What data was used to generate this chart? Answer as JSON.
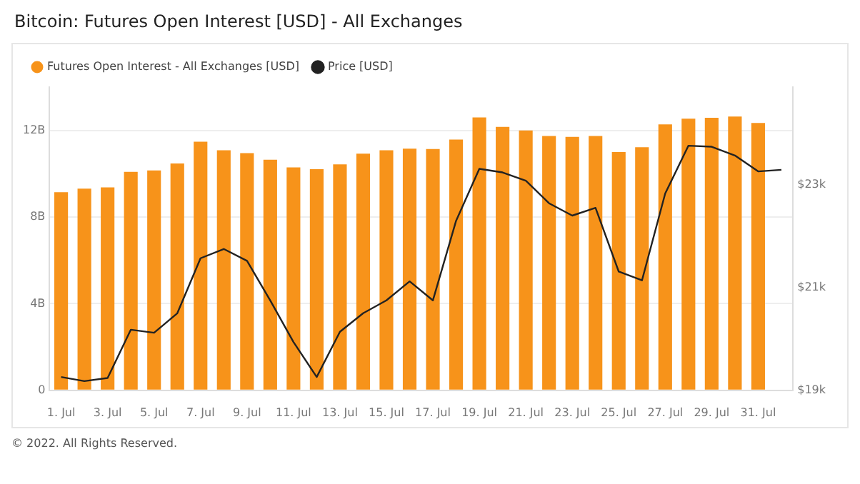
{
  "chart_data": {
    "type": "bar",
    "title": "Bitcoin: Futures Open Interest [USD] - All Exchanges",
    "categories": [
      "1. Jul",
      null,
      "3. Jul",
      null,
      "5. Jul",
      null,
      "7. Jul",
      null,
      "9. Jul",
      null,
      "11. Jul",
      null,
      "13. Jul",
      null,
      "15. Jul",
      null,
      "17. Jul",
      null,
      "19. Jul",
      null,
      "21. Jul",
      null,
      "23. Jul",
      null,
      "25. Jul",
      null,
      "27. Jul",
      null,
      "29. Jul",
      null,
      "31. Jul",
      null
    ],
    "series": [
      {
        "name": "Futures Open Interest - All Exchanges [USD]",
        "color": "#f7931a",
        "values": [
          9.15,
          9.31,
          9.37,
          10.09,
          10.15,
          10.47,
          11.48,
          11.08,
          10.95,
          10.65,
          10.29,
          10.21,
          10.43,
          10.93,
          11.08,
          11.16,
          11.14,
          11.58,
          12.6,
          12.16,
          12.0,
          11.74,
          11.7,
          11.74,
          11.0,
          11.22,
          12.28,
          12.54,
          12.58,
          12.64,
          12.34,
          null
        ]
      },
      {
        "name": "Price [USD]",
        "type": "line",
        "axis": "y2",
        "color": "#222222",
        "values": [
          19260,
          19180,
          19240,
          20180,
          20120,
          20500,
          21570,
          21750,
          21520,
          20750,
          19940,
          19260,
          20140,
          20500,
          20750,
          21120,
          20750,
          22300,
          23310,
          23240,
          23080,
          22640,
          22400,
          22550,
          21310,
          21140,
          22830,
          23760,
          23740,
          23570,
          23260,
          23290
        ]
      }
    ],
    "ylim": [
      0,
      14
    ],
    "yticks": [
      0,
      {
        "value": 4,
        "label": "4B"
      },
      {
        "value": 8,
        "label": "8B"
      },
      {
        "value": 12,
        "label": "12B"
      }
    ],
    "y2lim": [
      19000,
      24900
    ],
    "y2ticks": [
      {
        "value": 19000,
        "label": "$19k"
      },
      {
        "value": 21000,
        "label": "$21k"
      },
      {
        "value": 23000,
        "label": "$23k"
      }
    ],
    "grid": "y",
    "legend": "top left",
    "marker": "none",
    "line_style": "solid",
    "annotations": [
      "© 2022. All Rights Reserved."
    ]
  }
}
